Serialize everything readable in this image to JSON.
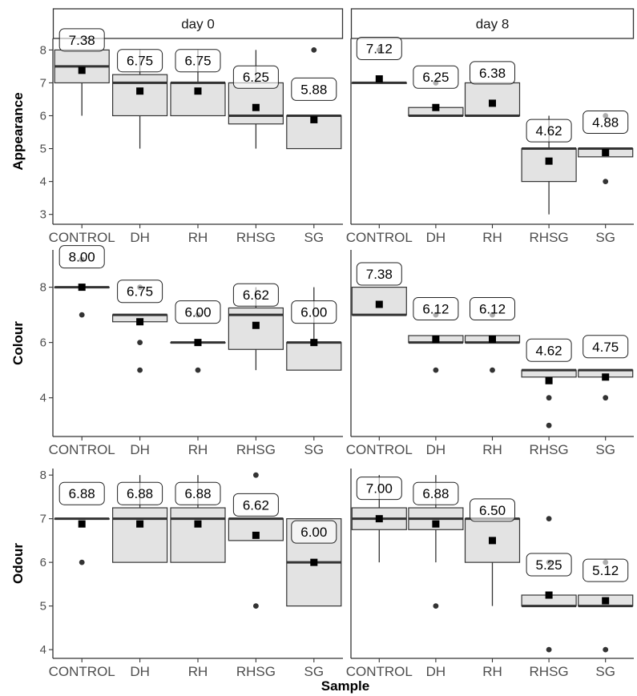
{
  "chart_data": {
    "type": "box",
    "xlabel": "Sample",
    "facet_columns": [
      "day 0",
      "day 8"
    ],
    "categories": [
      "CONTROL",
      "DH",
      "RH",
      "RHSG",
      "SG"
    ],
    "colors": {
      "box_fill": "#e3e3e3",
      "box_stroke": "#333333",
      "median_light": "#bbbbbb",
      "point": "#333333",
      "grey_point": "#aaaaaa",
      "mean_marker": "#000000",
      "label_stroke": "#222222"
    },
    "rows": [
      {
        "ylabel": "Appearance",
        "ylim": [
          2.7,
          8.35
        ],
        "yticks": [
          3,
          4,
          5,
          6,
          7,
          8
        ],
        "panels": [
          {
            "facet": "day 0",
            "boxes": [
              {
                "category": "CONTROL",
                "q1": 7.0,
                "median": 7.5,
                "q3": 8.0,
                "whisker_low": 6.0,
                "whisker_high": 8.0,
                "mean": 7.38,
                "label": "7.38",
                "outliers": []
              },
              {
                "category": "DH",
                "q1": 6.0,
                "median": 7.0,
                "q3": 7.25,
                "whisker_low": 5.0,
                "whisker_high": 8.0,
                "mean": 6.75,
                "label": "6.75",
                "outliers": []
              },
              {
                "category": "RH",
                "q1": 6.0,
                "median": 7.0,
                "q3": 7.0,
                "whisker_low": 6.0,
                "whisker_high": 8.0,
                "mean": 6.75,
                "label": "6.75",
                "outliers": []
              },
              {
                "category": "RHSG",
                "q1": 5.75,
                "median": 6.0,
                "q3": 7.0,
                "whisker_low": 5.0,
                "whisker_high": 8.0,
                "mean": 6.25,
                "label": "6.25",
                "outliers": []
              },
              {
                "category": "SG",
                "q1": 5.0,
                "median": 6.0,
                "q3": 6.0,
                "whisker_low": 5.0,
                "whisker_high": 6.0,
                "mean": 5.88,
                "label": "5.88",
                "outliers": [
                  8.0
                ]
              }
            ]
          },
          {
            "facet": "day 8",
            "boxes": [
              {
                "category": "CONTROL",
                "q1": 7.0,
                "median": 7.0,
                "q3": 7.0,
                "whisker_low": 7.0,
                "whisker_high": 7.0,
                "mean": 7.12,
                "label": "7.12",
                "outliers": [
                  8.0
                ]
              },
              {
                "category": "DH",
                "q1": 6.0,
                "median": 6.0,
                "q3": 6.25,
                "whisker_low": 6.0,
                "whisker_high": 6.25,
                "mean": 6.25,
                "label": "6.25",
                "outliers": [
                  7.0
                ]
              },
              {
                "category": "RH",
                "q1": 6.0,
                "median": 6.0,
                "q3": 7.0,
                "whisker_low": 6.0,
                "whisker_high": 7.0,
                "mean": 6.38,
                "label": "6.38",
                "outliers": []
              },
              {
                "category": "RHSG",
                "q1": 4.0,
                "median": 5.0,
                "q3": 5.0,
                "whisker_low": 3.0,
                "whisker_high": 6.0,
                "mean": 4.62,
                "label": "4.62",
                "outliers": []
              },
              {
                "category": "SG",
                "q1": 4.75,
                "median": 5.0,
                "q3": 5.0,
                "whisker_low": 4.75,
                "whisker_high": 5.0,
                "mean": 4.88,
                "label": "4.88",
                "outliers": [
                  4.0,
                  6.0
                ]
              }
            ]
          }
        ]
      },
      {
        "ylabel": "Colour",
        "ylim": [
          2.6,
          9.35
        ],
        "yticks": [
          4,
          6,
          8
        ],
        "panels": [
          {
            "facet": "day 0",
            "boxes": [
              {
                "category": "CONTROL",
                "q1": 8.0,
                "median": 8.0,
                "q3": 8.0,
                "whisker_low": 8.0,
                "whisker_high": 8.0,
                "mean": 8.0,
                "label": "8.00",
                "outliers": [
                  7.0,
                  9.0
                ]
              },
              {
                "category": "DH",
                "q1": 6.75,
                "median": 7.0,
                "q3": 7.0,
                "whisker_low": 6.75,
                "whisker_high": 7.0,
                "mean": 6.75,
                "label": "6.75",
                "outliers": [
                  5.0,
                  6.0,
                  8.0
                ]
              },
              {
                "category": "RH",
                "q1": 6.0,
                "median": 6.0,
                "q3": 6.0,
                "whisker_low": 6.0,
                "whisker_high": 6.0,
                "mean": 6.0,
                "label": "6.00",
                "outliers": [
                  5.0,
                  7.0
                ]
              },
              {
                "category": "RHSG",
                "q1": 5.75,
                "median": 7.0,
                "q3": 7.25,
                "whisker_low": 5.0,
                "whisker_high": 8.0,
                "mean": 6.62,
                "label": "6.62",
                "outliers": []
              },
              {
                "category": "SG",
                "q1": 5.0,
                "median": 6.0,
                "q3": 6.0,
                "whisker_low": 5.0,
                "whisker_high": 8.0,
                "mean": 6.0,
                "label": "6.00",
                "outliers": []
              }
            ]
          },
          {
            "facet": "day 8",
            "boxes": [
              {
                "category": "CONTROL",
                "q1": 7.0,
                "median": 7.0,
                "q3": 8.0,
                "whisker_low": 7.0,
                "whisker_high": 8.0,
                "mean": 7.38,
                "label": "7.38",
                "outliers": []
              },
              {
                "category": "DH",
                "q1": 6.0,
                "median": 6.0,
                "q3": 6.25,
                "whisker_low": 6.0,
                "whisker_high": 6.25,
                "mean": 6.12,
                "label": "6.12",
                "outliers": [
                  5.0,
                  7.0
                ]
              },
              {
                "category": "RH",
                "q1": 6.0,
                "median": 6.0,
                "q3": 6.25,
                "whisker_low": 6.0,
                "whisker_high": 6.25,
                "mean": 6.12,
                "label": "6.12",
                "outliers": [
                  5.0,
                  7.0
                ]
              },
              {
                "category": "RHSG",
                "q1": 4.75,
                "median": 5.0,
                "q3": 5.0,
                "whisker_low": 4.75,
                "whisker_high": 5.0,
                "mean": 4.62,
                "label": "4.62",
                "outliers": [
                  3.0,
                  4.0
                ]
              },
              {
                "category": "SG",
                "q1": 4.75,
                "median": 5.0,
                "q3": 5.0,
                "whisker_low": 4.75,
                "whisker_high": 5.0,
                "mean": 4.75,
                "label": "4.75",
                "outliers": [
                  4.0
                ]
              }
            ]
          }
        ]
      },
      {
        "ylabel": "Odour",
        "ylim": [
          3.8,
          8.15
        ],
        "yticks": [
          4,
          5,
          6,
          7,
          8
        ],
        "panels": [
          {
            "facet": "day 0",
            "boxes": [
              {
                "category": "CONTROL",
                "q1": 7.0,
                "median": 7.0,
                "q3": 7.0,
                "whisker_low": 7.0,
                "whisker_high": 7.0,
                "mean": 6.88,
                "label": "6.88",
                "outliers": [
                  6.0
                ]
              },
              {
                "category": "DH",
                "q1": 6.0,
                "median": 7.0,
                "q3": 7.25,
                "whisker_low": 6.0,
                "whisker_high": 8.0,
                "mean": 6.88,
                "label": "6.88",
                "outliers": []
              },
              {
                "category": "RH",
                "q1": 6.0,
                "median": 7.0,
                "q3": 7.25,
                "whisker_low": 6.0,
                "whisker_high": 8.0,
                "mean": 6.88,
                "label": "6.88",
                "outliers": []
              },
              {
                "category": "RHSG",
                "q1": 6.5,
                "median": 7.0,
                "q3": 7.0,
                "whisker_low": 6.5,
                "whisker_high": 7.0,
                "mean": 6.62,
                "label": "6.62",
                "outliers": [
                  5.0,
                  8.0
                ]
              },
              {
                "category": "SG",
                "q1": 5.0,
                "median": 6.0,
                "q3": 7.0,
                "whisker_low": 5.0,
                "whisker_high": 7.0,
                "mean": 6.0,
                "label": "6.00",
                "outliers": []
              }
            ]
          },
          {
            "facet": "day 8",
            "boxes": [
              {
                "category": "CONTROL",
                "q1": 6.75,
                "median": 7.0,
                "q3": 7.25,
                "whisker_low": 6.0,
                "whisker_high": 8.0,
                "mean": 7.0,
                "label": "7.00",
                "outliers": []
              },
              {
                "category": "DH",
                "q1": 6.75,
                "median": 7.0,
                "q3": 7.25,
                "whisker_low": 6.0,
                "whisker_high": 8.0,
                "mean": 6.88,
                "label": "6.88",
                "outliers": [
                  5.0
                ]
              },
              {
                "category": "RH",
                "q1": 6.0,
                "median": 7.0,
                "q3": 7.0,
                "whisker_low": 5.0,
                "whisker_high": 7.0,
                "mean": 6.5,
                "label": "6.50",
                "outliers": []
              },
              {
                "category": "RHSG",
                "q1": 5.0,
                "median": 5.0,
                "q3": 5.25,
                "whisker_low": 5.0,
                "whisker_high": 5.25,
                "mean": 5.25,
                "label": "5.25",
                "outliers": [
                  4.0,
                  6.0,
                  7.0
                ]
              },
              {
                "category": "SG",
                "q1": 5.0,
                "median": 5.0,
                "q3": 5.25,
                "whisker_low": 5.0,
                "whisker_high": 5.25,
                "mean": 5.12,
                "label": "5.12",
                "outliers": [
                  4.0,
                  6.0
                ]
              }
            ]
          }
        ]
      }
    ]
  }
}
